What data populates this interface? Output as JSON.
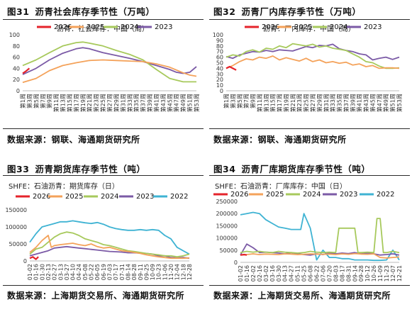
{
  "colors": {
    "s2026": "#e5232b",
    "s2025": "#f4a25a",
    "s2024": "#a7c95c",
    "s2023": "#7b5aa6",
    "s2022": "#3fb3d3"
  },
  "panels": [
    {
      "title_num": "图31",
      "title": "沥青社会库存季节性（万吨）",
      "subtitle": "沥青：社会库存：中国（周）",
      "source": "数据来源：钢联、海通期货研究所"
    },
    {
      "title_num": "图32",
      "title": "沥青厂内库存季节性（万吨）",
      "subtitle": "沥青：厂内库存：中国（周）",
      "source": "数据来源：钢联、海通期货研究所"
    },
    {
      "title_num": "图33",
      "title": "沥青期货库存季节性（吨）",
      "subtitle": "SHFE：石油沥青：期货库存（日）",
      "source": "数据来源：上海期货交易所、海通期货研究所"
    },
    {
      "title_num": "图34",
      "title": "沥青厂库期货库存季节性（吨）",
      "subtitle": "SHFE：石油沥青：厂库库存：中国（日）",
      "source": "数据来源：上海期货交易所、海通期货研究所"
    }
  ],
  "chart_data": [
    {
      "type": "line",
      "ylim": [
        0,
        100
      ],
      "yticks": [
        0,
        20,
        40,
        60,
        80,
        100
      ],
      "xticks": [
        "第1周",
        "第3周",
        "第5周",
        "第7周",
        "第9周",
        "第11周",
        "第13周",
        "第15周",
        "第17周",
        "第19周",
        "第21周",
        "第23周",
        "第25周",
        "第27周",
        "第29周",
        "第31周",
        "第33周",
        "第35周",
        "第37周",
        "第39周",
        "第41周",
        "第43周",
        "第45周",
        "第47周",
        "第49周",
        "第51周",
        "第53周"
      ],
      "series": [
        {
          "name": "2026",
          "x": [
            1,
            2,
            3
          ],
          "values": [
            31,
            35,
            40
          ]
        },
        {
          "name": "2025",
          "x": [
            1,
            5,
            9,
            13,
            17,
            21,
            25,
            29,
            33,
            37,
            41,
            45,
            49,
            51,
            53
          ],
          "values": [
            15,
            22,
            36,
            45,
            50,
            54,
            55,
            54,
            53,
            52,
            48,
            42,
            32,
            28,
            26
          ]
        },
        {
          "name": "2024",
          "x": [
            1,
            5,
            9,
            13,
            17,
            19,
            21,
            25,
            29,
            33,
            37,
            41,
            45,
            49,
            51,
            53
          ],
          "values": [
            45,
            55,
            68,
            80,
            86,
            87,
            85,
            80,
            72,
            65,
            55,
            38,
            22,
            16,
            16,
            16
          ]
        },
        {
          "name": "2023",
          "x": [
            1,
            5,
            9,
            13,
            17,
            19,
            21,
            25,
            29,
            33,
            37,
            41,
            45,
            47,
            49,
            51,
            53
          ],
          "values": [
            29,
            40,
            55,
            67,
            75,
            77,
            75,
            68,
            63,
            58,
            52,
            45,
            38,
            33,
            31,
            33,
            43
          ]
        }
      ]
    },
    {
      "type": "line",
      "ylim": [
        0,
        100
      ],
      "yticks": [
        0,
        10,
        20,
        30,
        40,
        50,
        60,
        70,
        80,
        90,
        100
      ],
      "xticks": [
        "第1周",
        "第3周",
        "第5周",
        "第7周",
        "第9周",
        "第11周",
        "第13周",
        "第15周",
        "第17周",
        "第19周",
        "第21周",
        "第23周",
        "第25周",
        "第27周",
        "第29周",
        "第31周",
        "第33周",
        "第35周",
        "第37周",
        "第39周",
        "第41周",
        "第43周",
        "第45周",
        "第47周",
        "第49周",
        "第51周",
        "第53周"
      ],
      "series": [
        {
          "name": "2026",
          "x": [
            1,
            2,
            3,
            4
          ],
          "values": [
            40,
            43,
            40,
            37
          ]
        },
        {
          "name": "2025",
          "x": [
            1,
            3,
            5,
            7,
            9,
            11,
            13,
            15,
            17,
            19,
            21,
            23,
            25,
            27,
            29,
            31,
            33,
            35,
            37,
            39,
            41,
            43,
            45,
            47,
            49,
            51,
            53
          ],
          "values": [
            40,
            45,
            52,
            57,
            55,
            60,
            58,
            62,
            55,
            59,
            56,
            53,
            58,
            52,
            55,
            50,
            52,
            49,
            51,
            46,
            48,
            43,
            45,
            40,
            41,
            41,
            40
          ]
        },
        {
          "name": "2024",
          "x": [
            1,
            3,
            5,
            7,
            9,
            11,
            13,
            15,
            17,
            19,
            21,
            23,
            25,
            27,
            29,
            31,
            33,
            35,
            37,
            39,
            41,
            43,
            45,
            47,
            49,
            51,
            53
          ],
          "values": [
            60,
            64,
            62,
            70,
            73,
            69,
            76,
            74,
            80,
            77,
            84,
            82,
            80,
            83,
            78,
            80,
            76,
            74,
            72,
            66,
            60,
            52,
            50,
            44,
            40,
            40,
            41
          ]
        },
        {
          "name": "2023",
          "x": [
            1,
            3,
            5,
            7,
            9,
            11,
            13,
            15,
            17,
            19,
            21,
            23,
            25,
            27,
            29,
            31,
            33,
            35,
            37,
            39,
            41,
            43,
            45,
            47,
            49,
            51,
            53
          ],
          "values": [
            61,
            58,
            64,
            67,
            70,
            69,
            72,
            70,
            73,
            72,
            71,
            75,
            79,
            77,
            81,
            80,
            83,
            75,
            72,
            70,
            66,
            64,
            55,
            58,
            60,
            56,
            60
          ]
        }
      ]
    },
    {
      "type": "line",
      "ylim": [
        0,
        150000
      ],
      "yticks": [
        0,
        50000,
        100000,
        150000
      ],
      "xticks": [
        "01-02",
        "01-16",
        "01-30",
        "02-13",
        "02-27",
        "03-13",
        "03-27",
        "04-10",
        "04-24",
        "05-08",
        "05-22",
        "06-05",
        "06-19",
        "07-03",
        "07-17",
        "07-31",
        "08-14",
        "08-28",
        "09-11",
        "09-25",
        "10-09",
        "10-23",
        "11-06",
        "11-20",
        "12-04",
        "12-18",
        "12-28"
      ],
      "series": [
        {
          "name": "2026",
          "x": [
            0,
            0.5,
            1,
            1.4
          ],
          "values": [
            8000,
            12000,
            5000,
            12000
          ]
        },
        {
          "name": "2025",
          "x": [
            0,
            1,
            2,
            3,
            3.5,
            4,
            5,
            6,
            7,
            8,
            9,
            10,
            11,
            12,
            13,
            14,
            15,
            16,
            17,
            18,
            19,
            20,
            21,
            22,
            23,
            24,
            25,
            26
          ],
          "values": [
            25000,
            40000,
            60000,
            75000,
            40000,
            45000,
            48000,
            50000,
            52000,
            48000,
            45000,
            50000,
            42000,
            38000,
            40000,
            35000,
            30000,
            28000,
            25000,
            22000,
            18000,
            15000,
            12000,
            10000,
            8000,
            8000,
            8000,
            9000
          ]
        },
        {
          "name": "2024",
          "x": [
            0,
            1,
            2,
            3,
            4,
            5,
            6,
            7,
            8,
            9,
            10,
            11,
            12,
            13,
            14,
            15,
            16,
            17,
            18,
            19,
            20,
            21,
            22,
            23,
            24,
            25,
            26
          ],
          "values": [
            20000,
            35000,
            40000,
            55000,
            70000,
            80000,
            85000,
            82000,
            75000,
            65000,
            60000,
            55000,
            48000,
            45000,
            40000,
            35000,
            30000,
            28000,
            25000,
            22000,
            20000,
            18000,
            15000,
            15000,
            12000,
            15000,
            20000
          ]
        },
        {
          "name": "2023",
          "x": [
            0,
            1,
            2,
            3,
            4,
            5,
            6,
            7,
            8,
            9,
            10,
            11,
            12,
            13,
            14,
            15,
            16,
            17,
            18,
            19,
            20,
            21,
            22,
            23,
            24,
            25,
            26
          ],
          "values": [
            15000,
            20000,
            25000,
            30000,
            38000,
            40000,
            42000,
            40000,
            38000,
            36000,
            34000,
            32000,
            30000,
            28000,
            27000,
            26000,
            24000,
            24000,
            23000,
            22000,
            20000,
            15000,
            15000,
            10000,
            9000,
            10000,
            8000
          ]
        },
        {
          "name": "2022",
          "x": [
            0,
            1,
            2,
            3,
            4,
            5,
            6,
            7,
            8,
            9,
            10,
            11,
            12,
            13,
            14,
            15,
            16,
            17,
            18,
            19,
            20,
            21,
            22,
            23,
            24,
            25,
            26
          ],
          "values": [
            55000,
            80000,
            100000,
            105000,
            110000,
            115000,
            115000,
            118000,
            115000,
            112000,
            110000,
            113000,
            108000,
            100000,
            95000,
            92000,
            90000,
            90000,
            92000,
            90000,
            92000,
            90000,
            75000,
            65000,
            40000,
            30000,
            20000
          ]
        }
      ]
    },
    {
      "type": "line",
      "ylim": [
        0,
        250000
      ],
      "yticks": [
        0,
        50000,
        100000,
        150000,
        200000,
        250000
      ],
      "xticks": [
        "01-02",
        "01-16",
        "02-02",
        "02-16",
        "03-02",
        "03-16",
        "03-30",
        "04-13",
        "04-27",
        "05-11",
        "05-25",
        "06-08",
        "06-22",
        "07-06",
        "07-20",
        "08-03",
        "08-17",
        "08-31",
        "09-14",
        "09-28",
        "10-12",
        "10-26",
        "11-09",
        "11-23",
        "12-07",
        "12-21"
      ],
      "series": [
        {
          "name": "2026",
          "x": [
            0,
            0.6,
            1
          ],
          "values": [
            30000,
            32000,
            30000
          ]
        },
        {
          "name": "2025",
          "x": [
            0,
            1,
            2,
            3,
            4,
            5,
            6,
            7,
            8,
            9,
            10,
            11,
            12,
            13,
            14,
            15,
            16,
            17,
            18,
            19,
            20,
            21,
            22,
            23,
            24,
            25
          ],
          "values": [
            30000,
            32000,
            35000,
            32000,
            34000,
            33000,
            32000,
            35000,
            34000,
            32000,
            33000,
            35000,
            34000,
            33000,
            34000,
            32000,
            35000,
            33000,
            36000,
            34000,
            33000,
            35000,
            20000,
            18000,
            20000,
            22000
          ]
        },
        {
          "name": "2024",
          "x": [
            0,
            1,
            2,
            3,
            4,
            5,
            6,
            7,
            8,
            9,
            10,
            11,
            12,
            13,
            14,
            15,
            15.5,
            16,
            17,
            18,
            18.5,
            19,
            20,
            21,
            21.5,
            22,
            22.5,
            23,
            24,
            25
          ],
          "values": [
            40000,
            45000,
            42000,
            45000,
            42000,
            40000,
            45000,
            42000,
            40000,
            38000,
            40000,
            45000,
            42000,
            40000,
            42000,
            40000,
            140000,
            140000,
            140000,
            140000,
            40000,
            40000,
            42000,
            40000,
            180000,
            180000,
            40000,
            40000,
            45000,
            40000
          ]
        },
        {
          "name": "2023",
          "x": [
            0,
            1,
            2,
            3,
            4,
            5,
            6,
            7,
            8,
            9,
            10,
            11,
            12,
            13,
            14,
            15,
            16,
            17,
            18,
            19,
            20,
            21,
            22,
            23,
            24,
            25
          ],
          "values": [
            30000,
            75000,
            60000,
            40000,
            42000,
            40000,
            38000,
            35000,
            40000,
            35000,
            32000,
            30000,
            35000,
            32000,
            38000,
            35000,
            38000,
            36000,
            40000,
            35000,
            38000,
            35000,
            30000,
            32000,
            35000,
            30000
          ]
        },
        {
          "name": "2022",
          "x": [
            0,
            1,
            2,
            3,
            4,
            5,
            6,
            7,
            8,
            9,
            9.5,
            10,
            11,
            12,
            13,
            14,
            15,
            16,
            17,
            18,
            19,
            20,
            21,
            22,
            23,
            24,
            25
          ],
          "values": [
            195000,
            200000,
            205000,
            200000,
            175000,
            160000,
            145000,
            140000,
            135000,
            135000,
            135000,
            200000,
            140000,
            10000,
            50000,
            20000,
            20000,
            15000,
            15000,
            10000,
            10000,
            10000,
            8000,
            8000,
            10000,
            50000,
            10000
          ]
        }
      ]
    }
  ]
}
